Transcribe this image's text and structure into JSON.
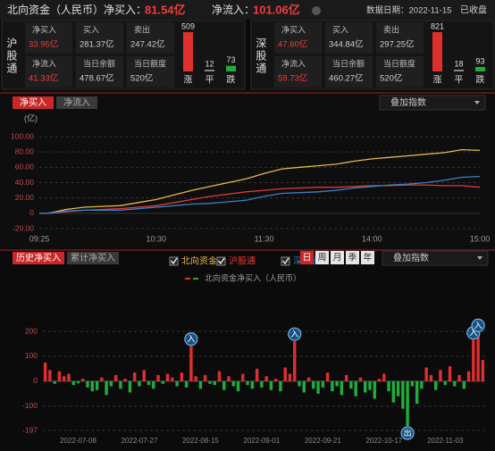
{
  "header": {
    "title": "北向资金（人民币）",
    "net_buy_label": "净买入：",
    "net_buy": "81.54亿",
    "net_inflow_label": "净流入：",
    "net_inflow": "101.06亿",
    "date": "数据日期：2022-11-15",
    "status": "已收盘"
  },
  "markets": [
    {
      "name": "沪股通",
      "stats": [
        {
          "label": "净买入",
          "value": "33.95亿"
        },
        {
          "label": "买入",
          "value": "281.37亿"
        },
        {
          "label": "卖出",
          "value": "247.42亿"
        },
        {
          "label": "净流入",
          "value": "41.33亿"
        },
        {
          "label": "当日余额",
          "value": "478.67亿"
        },
        {
          "label": "当日额度",
          "value": "520亿"
        }
      ],
      "breadth": [
        {
          "count": 509,
          "label": "涨"
        },
        {
          "count": 12,
          "label": "平"
        },
        {
          "count": 73,
          "label": "跌"
        }
      ]
    },
    {
      "name": "深股通",
      "stats": [
        {
          "label": "净买入",
          "value": "47.60亿"
        },
        {
          "label": "买入",
          "value": "344.84亿"
        },
        {
          "label": "卖出",
          "value": "297.25亿"
        },
        {
          "label": "净流入",
          "value": "59.73亿"
        },
        {
          "label": "当日余额",
          "value": "460.27亿"
        },
        {
          "label": "当日额度",
          "value": "520亿"
        }
      ],
      "breadth": [
        {
          "count": 821,
          "label": "涨"
        },
        {
          "count": 18,
          "label": "平"
        },
        {
          "count": 93,
          "label": "跌"
        }
      ]
    }
  ],
  "chart_data": [
    {
      "type": "line",
      "tabs": [
        "净买入",
        "净流入"
      ],
      "overlay": "叠加指数",
      "unit": "(亿)",
      "x": [
        "09:25",
        "09:30",
        "09:40",
        "09:50",
        "10:00",
        "10:10",
        "10:20",
        "10:30",
        "10:40",
        "10:50",
        "11:00",
        "11:10",
        "11:20",
        "11:30",
        "13:10",
        "13:20",
        "13:30",
        "13:40",
        "13:50",
        "14:00",
        "14:10",
        "14:20",
        "14:30",
        "14:40",
        "14:50",
        "15:00"
      ],
      "xlim": [
        "09:25",
        "15:00"
      ],
      "xticks": [
        "09:25",
        "10:30",
        "11:30",
        "14:00",
        "15:00"
      ],
      "ylim": [
        -20,
        100
      ],
      "yticks": [
        {
          "value": 100,
          "label": "100.00"
        },
        {
          "value": 80,
          "label": "80.00"
        },
        {
          "value": 60,
          "label": "60.00"
        },
        {
          "value": 40,
          "label": "40.00"
        },
        {
          "value": 20,
          "label": "20.00"
        },
        0,
        {
          "value": -20,
          "label": "-20.00"
        }
      ],
      "grid": true,
      "series": [
        {
          "name": "北向资金",
          "color": "#e8b64c",
          "values": [
            0,
            0,
            5,
            8,
            9,
            10,
            14,
            18,
            24,
            30,
            35,
            40,
            45,
            52,
            58,
            60,
            62,
            64,
            68,
            71,
            73,
            75,
            77,
            79,
            83,
            82
          ]
        },
        {
          "name": "沪股通",
          "color": "#e03a3a",
          "values": [
            0,
            0,
            2,
            4,
            5,
            6,
            8,
            10,
            14,
            18,
            22,
            25,
            28,
            30,
            32,
            33,
            34,
            34,
            35,
            36,
            36,
            37,
            37,
            36,
            36,
            34
          ]
        },
        {
          "name": "深股通",
          "color": "#3d7fc9",
          "values": [
            0,
            0,
            3,
            4,
            4,
            4,
            6,
            8,
            10,
            12,
            13,
            15,
            17,
            22,
            26,
            27,
            28,
            30,
            33,
            35,
            37,
            38,
            40,
            43,
            47,
            48
          ]
        }
      ]
    },
    {
      "type": "bar",
      "tabs": [
        "历史净买入",
        "累计净买入"
      ],
      "periods": [
        "日",
        "周",
        "月",
        "季",
        "年"
      ],
      "overlay": "叠加指数",
      "legend": "北向资金净买入（人民币）",
      "up_color": "#e0302e",
      "down_color": "#1fae3c",
      "categories": [
        null,
        null,
        null,
        null,
        null,
        null,
        null,
        "2022-07-08",
        null,
        null,
        null,
        null,
        null,
        null,
        null,
        null,
        null,
        null,
        null,
        null,
        "2022-07-27",
        null,
        null,
        null,
        null,
        null,
        null,
        null,
        null,
        null,
        null,
        null,
        null,
        "2022-08-15",
        null,
        null,
        null,
        null,
        null,
        null,
        null,
        null,
        null,
        null,
        null,
        null,
        "2022-09-01",
        null,
        null,
        null,
        null,
        null,
        null,
        null,
        null,
        null,
        null,
        null,
        null,
        "2022-09-21",
        null,
        null,
        null,
        null,
        null,
        null,
        null,
        null,
        null,
        null,
        null,
        null,
        "2022-10-17",
        null,
        null,
        null,
        null,
        null,
        null,
        null,
        null,
        null,
        null,
        null,
        null,
        "2022-11-03",
        null,
        null,
        null,
        null,
        null,
        null,
        null,
        null
      ],
      "values": [
        75,
        45,
        -10,
        40,
        20,
        30,
        -15,
        -8,
        10,
        -25,
        -40,
        -35,
        15,
        -55,
        -20,
        25,
        -30,
        10,
        -45,
        35,
        -20,
        45,
        -15,
        -30,
        25,
        -10,
        30,
        15,
        -20,
        35,
        -25,
        140,
        20,
        -30,
        25,
        -10,
        -15,
        40,
        -35,
        20,
        -20,
        -40,
        30,
        -15,
        -30,
        50,
        -25,
        20,
        -35,
        10,
        -40,
        55,
        30,
        160,
        -20,
        -45,
        15,
        -30,
        -50,
        -25,
        35,
        -40,
        -20,
        -55,
        25,
        -30,
        -60,
        15,
        -45,
        -35,
        -70,
        10,
        30,
        -40,
        -85,
        -60,
        -110,
        -179,
        -20,
        -90,
        -30,
        55,
        25,
        -35,
        45,
        -15,
        60,
        -20,
        25,
        -30,
        40,
        165,
        195,
        85
      ],
      "ylim": [
        -197,
        200
      ],
      "yticks": [
        200,
        100,
        0,
        -100,
        -197
      ],
      "grid": true,
      "annotations": [
        {
          "index": 31,
          "text": "入"
        },
        {
          "index": 53,
          "text": "入"
        },
        {
          "index": 77,
          "text": "出"
        },
        {
          "index": 91,
          "text": "入"
        },
        {
          "index": 92,
          "text": "入"
        }
      ]
    }
  ]
}
